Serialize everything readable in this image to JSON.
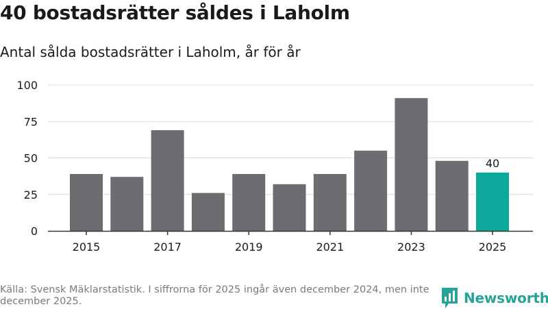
{
  "title": "40 bostadsrätter såldes i Laholm",
  "subtitle": "Antal sålda bostadsrätter i Laholm, år för år",
  "footer": {
    "source": "Källa: Svensk Mäklarstatistik. I siffrorna för 2025 ingår även december 2024, men inte december 2025."
  },
  "brand": {
    "name": "Newsworthy",
    "color": "#28a39a"
  },
  "colors": {
    "bar": "#6d6c71",
    "highlight": "#0ea79b",
    "grid": "#dcdcdc",
    "axis": "#333333",
    "text": "#1a1a1a"
  },
  "chart_data": {
    "type": "bar",
    "title": "40 bostadsrätter såldes i Laholm",
    "subtitle": "Antal sålda bostadsrätter i Laholm, år för år",
    "categories": [
      "2015",
      "2016",
      "2017",
      "2018",
      "2019",
      "2020",
      "2021",
      "2022",
      "2023",
      "2024",
      "2025"
    ],
    "values": [
      39,
      37,
      69,
      26,
      39,
      32,
      39,
      55,
      91,
      48,
      40
    ],
    "highlight_index": 10,
    "data_labels": [
      {
        "index": 10,
        "text": "40"
      }
    ],
    "x_tick_labels": [
      "2015",
      "2017",
      "2019",
      "2021",
      "2023",
      "2025"
    ],
    "y_ticks": [
      0,
      25,
      50,
      75,
      100
    ],
    "ylim": [
      0,
      100
    ],
    "xlabel": "",
    "ylabel": "",
    "grid": true,
    "legend": "none"
  }
}
